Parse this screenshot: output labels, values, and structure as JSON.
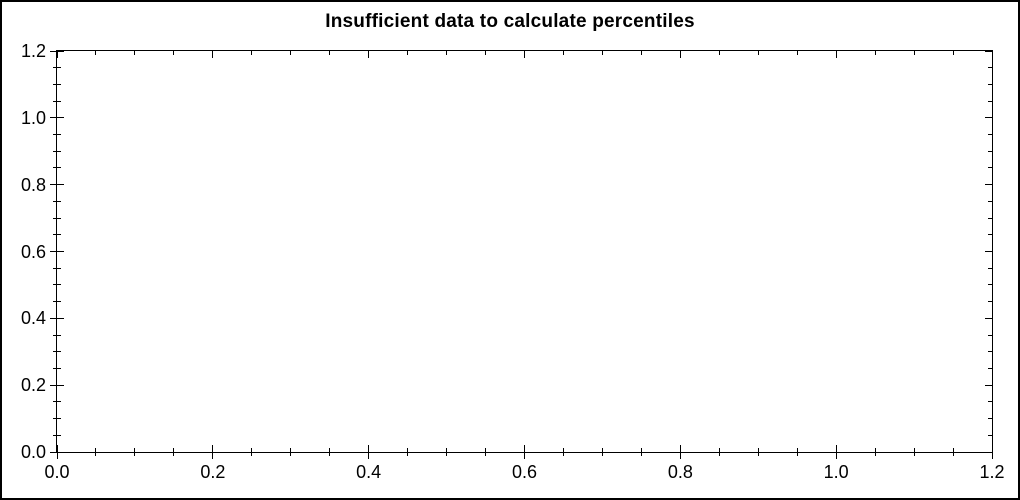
{
  "window": {
    "background_color": "#ffffff",
    "frame_color": "#000000"
  },
  "chart_data": {
    "type": "scatter",
    "title": "Insufficient data to calculate percentiles",
    "xlabel": "",
    "ylabel": "",
    "xlim": [
      0.0,
      1.2
    ],
    "ylim": [
      0.0,
      1.2
    ],
    "x_ticks": [
      0.0,
      0.2,
      0.4,
      0.6,
      0.8,
      1.0,
      1.2
    ],
    "x_tick_labels": [
      "0.0",
      "0.2",
      "0.4",
      "0.6",
      "0.8",
      "1.0",
      "1.2"
    ],
    "y_ticks": [
      0.0,
      0.2,
      0.4,
      0.6,
      0.8,
      1.0,
      1.2
    ],
    "y_tick_labels": [
      "0.0",
      "0.2",
      "0.4",
      "0.6",
      "0.8",
      "1.0",
      "1.2"
    ],
    "minor_tick_step": 0.05,
    "series": [],
    "grid": false,
    "legend": false,
    "frame": "box-with-inward-mirrored-ticks",
    "axis_color": "#000000",
    "text_color": "#000000"
  }
}
